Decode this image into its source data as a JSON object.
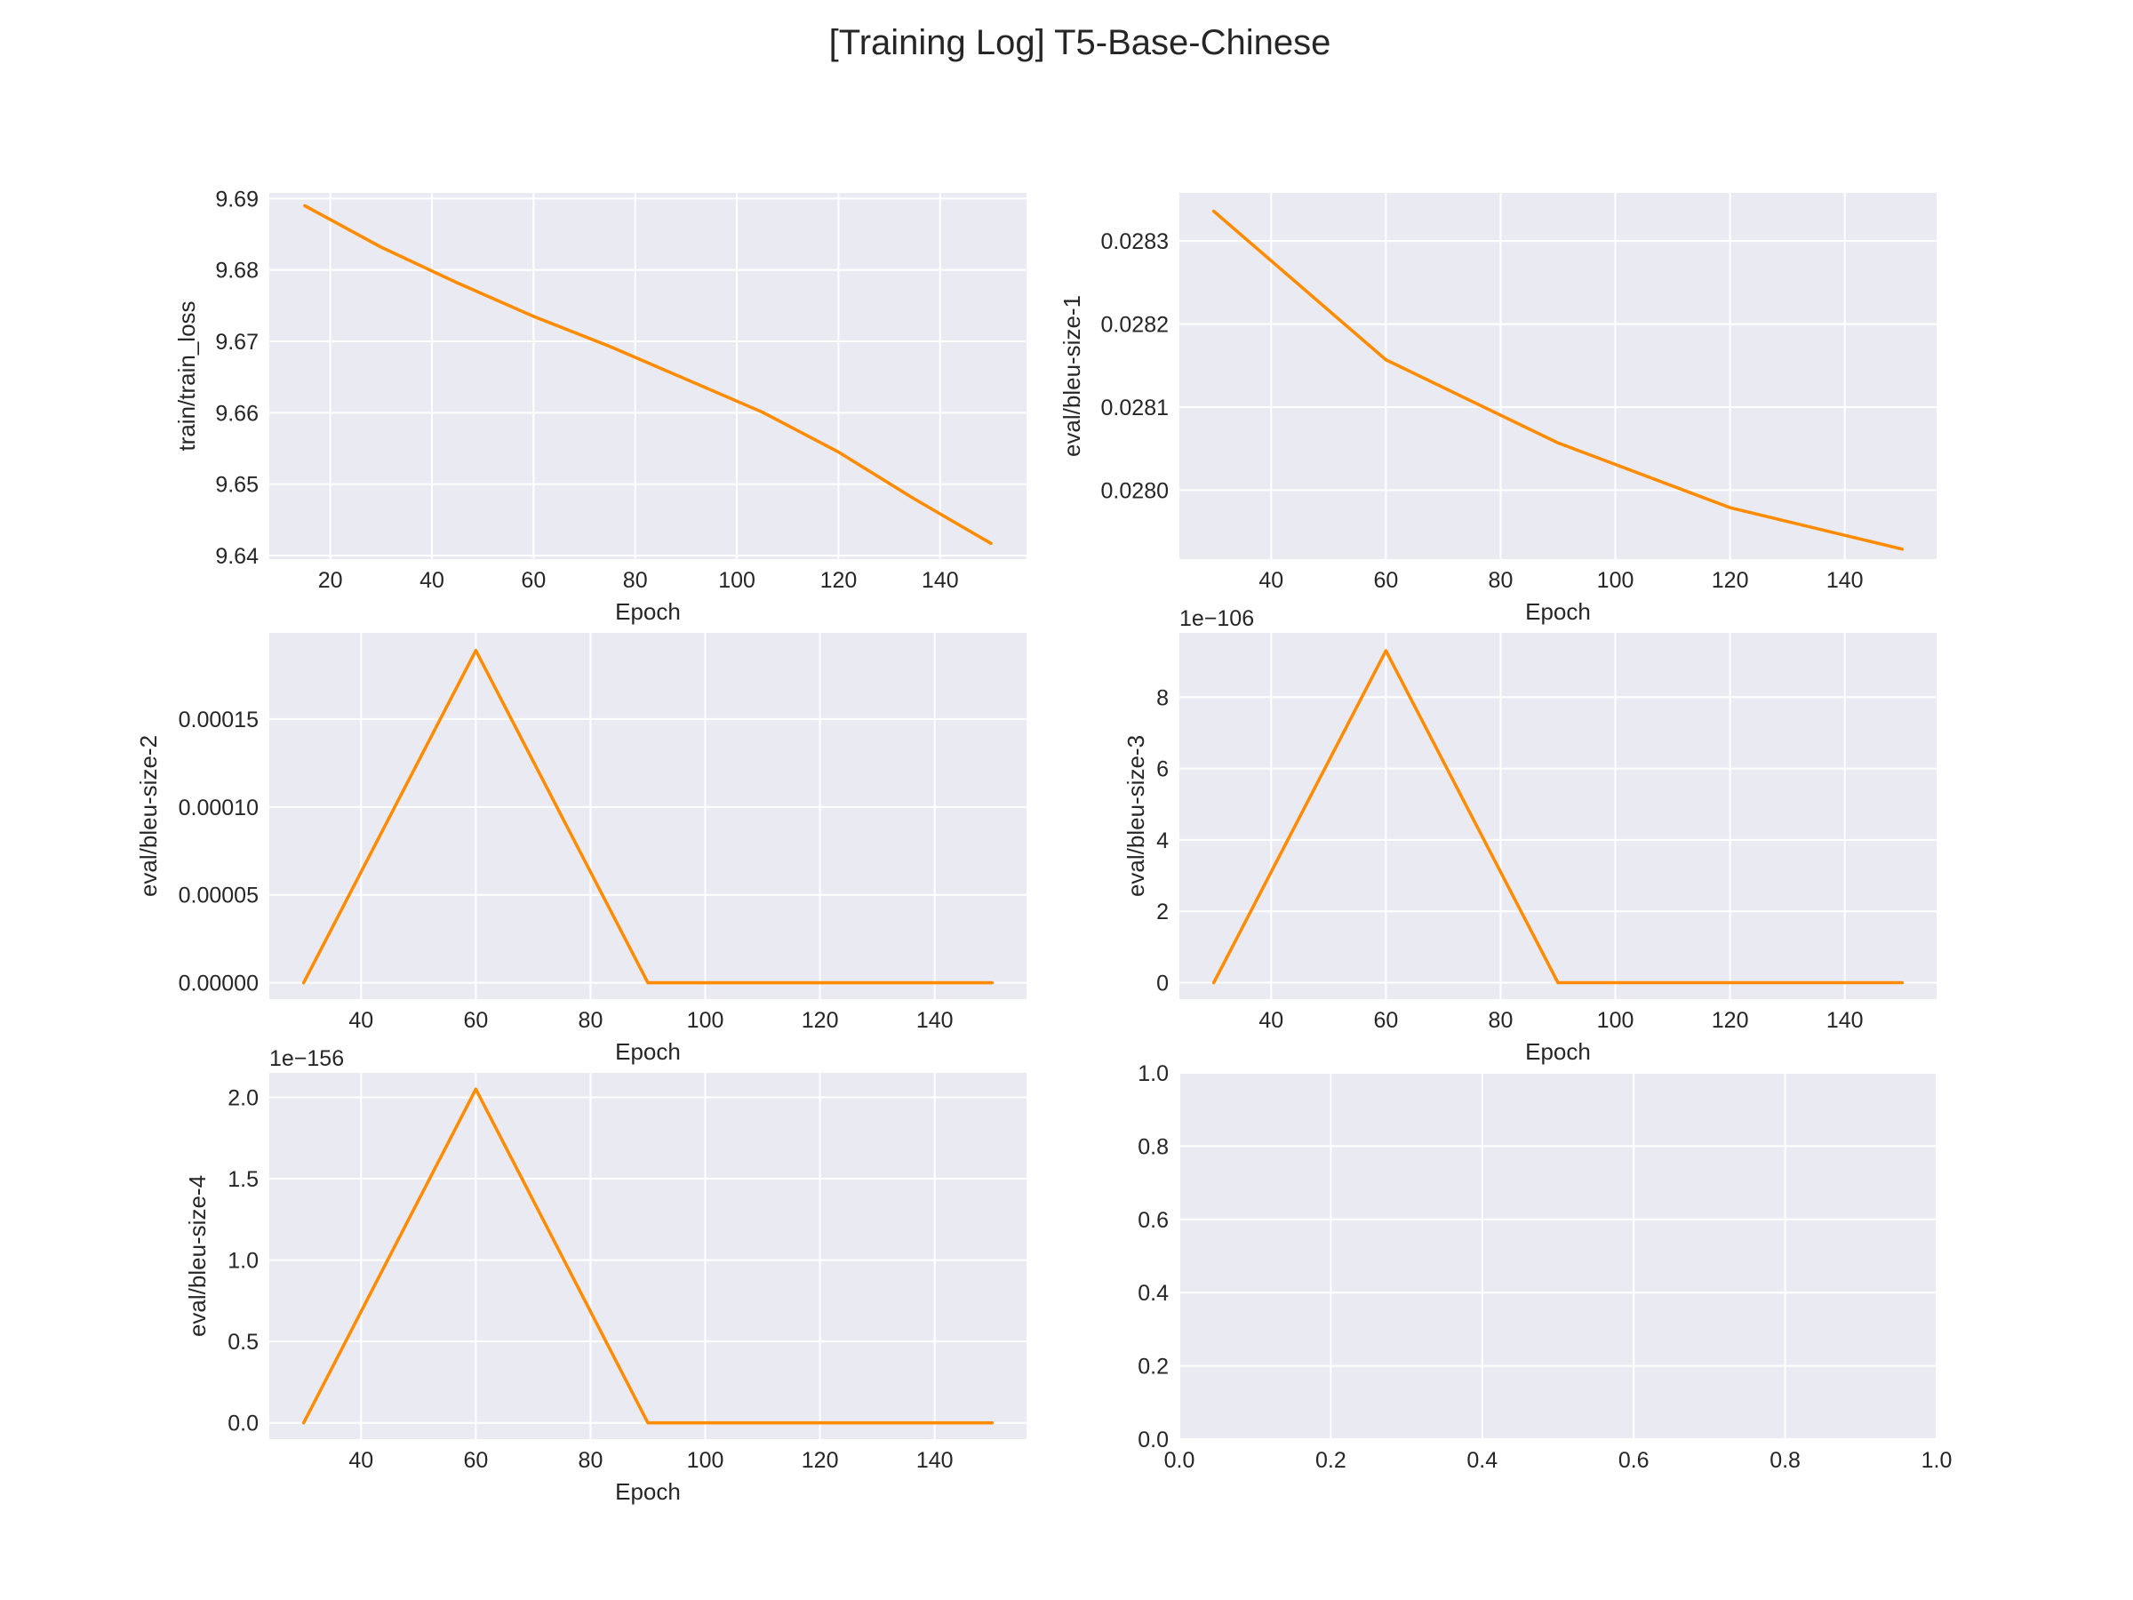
{
  "title": "[Training Log] T5-Base-Chinese",
  "colors": {
    "line": "#ff8c00",
    "panel_bg": "#eaeaf2",
    "grid": "#ffffff",
    "text": "#262626"
  },
  "chart_data": [
    {
      "type": "line",
      "xlabel": "Epoch",
      "ylabel": "train/train_loss",
      "offset_text": "",
      "grid": true,
      "xlim": [
        8,
        157
      ],
      "ylim": [
        9.6395,
        9.6908
      ],
      "xticks": [
        20,
        40,
        60,
        80,
        100,
        120,
        140
      ],
      "xtick_labels": [
        "20",
        "40",
        "60",
        "80",
        "100",
        "120",
        "140"
      ],
      "yticks": [
        9.64,
        9.65,
        9.66,
        9.67,
        9.68,
        9.69
      ],
      "ytick_labels": [
        "9.64",
        "9.65",
        "9.66",
        "9.67",
        "9.68",
        "9.69"
      ],
      "x": [
        15,
        30,
        45,
        60,
        75,
        90,
        105,
        120,
        135,
        150
      ],
      "y": [
        9.689,
        9.6832,
        9.6782,
        9.6735,
        9.6693,
        9.6647,
        9.6601,
        9.6545,
        9.6479,
        9.6417
      ]
    },
    {
      "type": "line",
      "xlabel": "Epoch",
      "ylabel": "eval/bleu-size-1",
      "offset_text": "",
      "grid": true,
      "xlim": [
        24,
        156
      ],
      "ylim": [
        0.027917,
        0.028358
      ],
      "xticks": [
        40,
        60,
        80,
        100,
        120,
        140
      ],
      "xtick_labels": [
        "40",
        "60",
        "80",
        "100",
        "120",
        "140"
      ],
      "yticks": [
        0.028,
        0.0281,
        0.0282,
        0.0283
      ],
      "ytick_labels": [
        "0.0280",
        "0.0281",
        "0.0282",
        "0.0283"
      ],
      "x": [
        30,
        60,
        90,
        120,
        150
      ],
      "y": [
        0.028336,
        0.028157,
        0.028057,
        0.027979,
        0.027929
      ]
    },
    {
      "type": "line",
      "xlabel": "Epoch",
      "ylabel": "eval/bleu-size-2",
      "offset_text": "",
      "grid": true,
      "xlim": [
        24,
        156
      ],
      "ylim": [
        -9.3e-06,
        0.000199
      ],
      "xticks": [
        40,
        60,
        80,
        100,
        120,
        140
      ],
      "xtick_labels": [
        "40",
        "60",
        "80",
        "100",
        "120",
        "140"
      ],
      "yticks": [
        0,
        5e-05,
        0.0001,
        0.00015
      ],
      "ytick_labels": [
        "0.00000",
        "0.00005",
        "0.00010",
        "0.00015"
      ],
      "x": [
        30,
        60,
        90,
        120,
        150
      ],
      "y": [
        0,
        0.000189,
        0,
        0,
        0
      ]
    },
    {
      "type": "line",
      "xlabel": "Epoch",
      "ylabel": "eval/bleu-size-3",
      "offset_text": "1e−106",
      "grid": true,
      "xlim": [
        24,
        156
      ],
      "ylim": [
        -0.46,
        9.8
      ],
      "xticks": [
        40,
        60,
        80,
        100,
        120,
        140
      ],
      "xtick_labels": [
        "40",
        "60",
        "80",
        "100",
        "120",
        "140"
      ],
      "yticks": [
        0,
        2,
        4,
        6,
        8
      ],
      "ytick_labels": [
        "0",
        "2",
        "4",
        "6",
        "8"
      ],
      "x": [
        30,
        60,
        90,
        120,
        150
      ],
      "y": [
        0,
        9.3,
        0,
        0,
        0
      ]
    },
    {
      "type": "line",
      "xlabel": "Epoch",
      "ylabel": "eval/bleu-size-4",
      "offset_text": "1e−156",
      "grid": true,
      "xlim": [
        24,
        156
      ],
      "ylim": [
        -0.1,
        2.15
      ],
      "xticks": [
        40,
        60,
        80,
        100,
        120,
        140
      ],
      "xtick_labels": [
        "40",
        "60",
        "80",
        "100",
        "120",
        "140"
      ],
      "yticks": [
        0,
        0.5,
        1,
        1.5,
        2
      ],
      "ytick_labels": [
        "0.0",
        "0.5",
        "1.0",
        "1.5",
        "2.0"
      ],
      "x": [
        30,
        60,
        90,
        120,
        150
      ],
      "y": [
        0,
        2.05,
        0,
        0,
        0
      ]
    },
    {
      "type": "empty",
      "xlabel": "",
      "ylabel": "",
      "offset_text": "",
      "grid": true,
      "xlim": [
        0,
        1
      ],
      "ylim": [
        0,
        1
      ],
      "xticks": [
        0,
        0.2,
        0.4,
        0.6,
        0.8,
        1
      ],
      "xtick_labels": [
        "0.0",
        "0.2",
        "0.4",
        "0.6",
        "0.8",
        "1.0"
      ],
      "yticks": [
        0,
        0.2,
        0.4,
        0.6,
        0.8,
        1
      ],
      "ytick_labels": [
        "0.0",
        "0.2",
        "0.4",
        "0.6",
        "0.8",
        "1.0"
      ],
      "x": [],
      "y": []
    }
  ]
}
